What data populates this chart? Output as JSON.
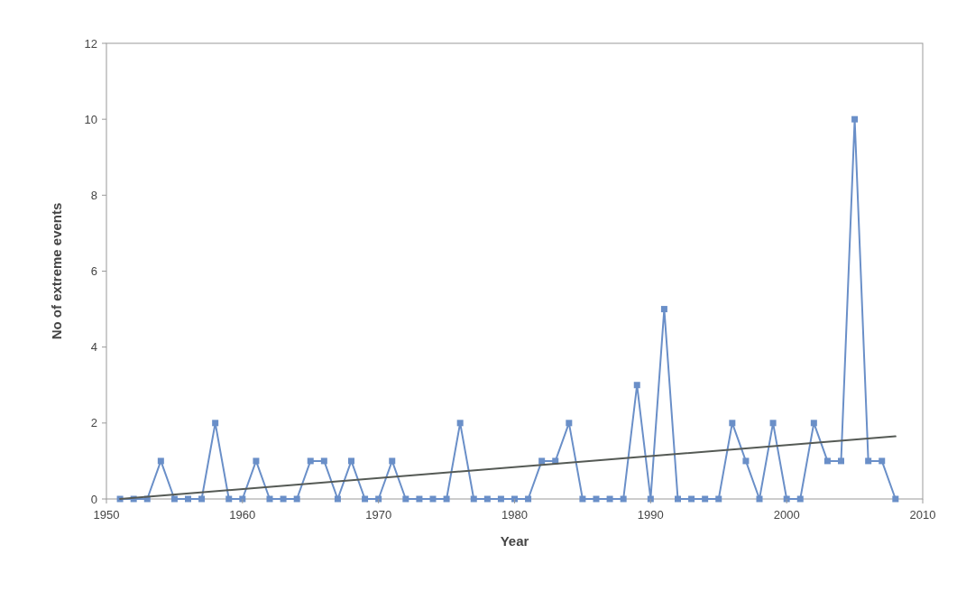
{
  "chart_data": {
    "type": "line",
    "xlabel": "Year",
    "ylabel": "No of extreme events",
    "xlim": [
      1950,
      2010
    ],
    "xticks": [
      1950,
      1960,
      1970,
      1980,
      1990,
      2000,
      2010
    ],
    "ylim": [
      0,
      12
    ],
    "yticks": [
      0,
      2,
      4,
      6,
      8,
      10,
      12
    ],
    "grid": false,
    "marker": "square",
    "line_style": "solid",
    "series": [
      {
        "color": "#6a8fc8",
        "x": [
          1951,
          1952,
          1953,
          1954,
          1955,
          1956,
          1957,
          1958,
          1959,
          1960,
          1961,
          1962,
          1963,
          1964,
          1965,
          1966,
          1967,
          1968,
          1969,
          1970,
          1971,
          1972,
          1973,
          1974,
          1975,
          1976,
          1977,
          1978,
          1979,
          1980,
          1981,
          1982,
          1983,
          1984,
          1985,
          1986,
          1987,
          1988,
          1989,
          1990,
          1991,
          1992,
          1993,
          1994,
          1995,
          1996,
          1997,
          1998,
          1999,
          2000,
          2001,
          2002,
          2003,
          2004,
          2005,
          2006,
          2007,
          2008
        ],
        "values": [
          0,
          0,
          0,
          1,
          0,
          0,
          0,
          2,
          0,
          0,
          1,
          0,
          0,
          0,
          1,
          1,
          0,
          1,
          0,
          0,
          1,
          0,
          0,
          0,
          0,
          2,
          0,
          0,
          0,
          0,
          0,
          1,
          1,
          2,
          0,
          0,
          0,
          0,
          3,
          0,
          5,
          0,
          0,
          0,
          0,
          2,
          1,
          0,
          2,
          0,
          0,
          2,
          1,
          1,
          10,
          1,
          1,
          0
        ]
      },
      {
        "type": "line",
        "color": "#555a55",
        "marker": "none",
        "x": [
          1951,
          2008
        ],
        "values": [
          0,
          1.65
        ]
      }
    ]
  }
}
